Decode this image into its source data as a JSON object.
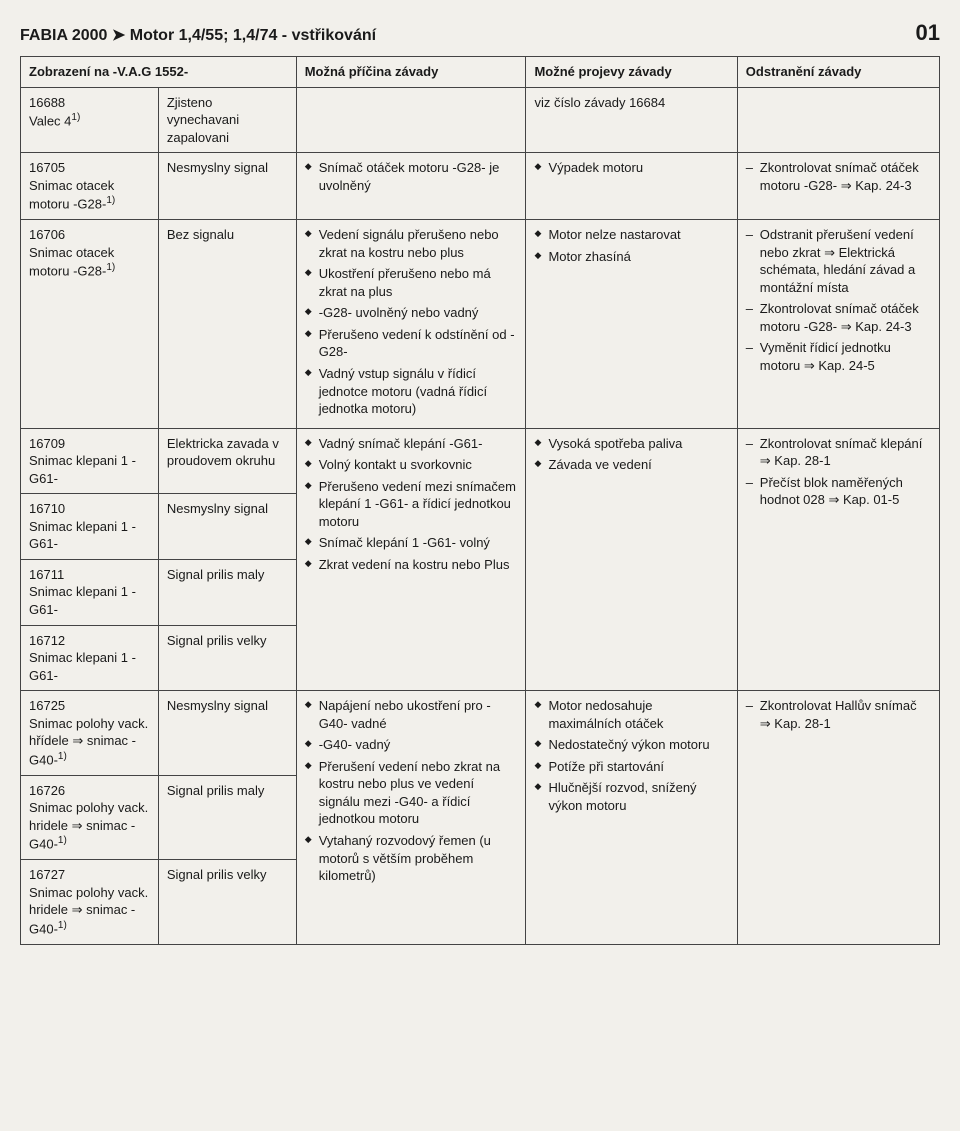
{
  "header": {
    "title": "FABIA 2000 ➤ Motor 1,4/55; 1,4/74 - vstřikování",
    "page": "01"
  },
  "table": {
    "headers": {
      "code": "Zobrazení na -V.A.G 1552-",
      "display": "",
      "cause": "Možná příčina závady",
      "symptom": "Možné projevy závady",
      "fix": "Odstranění závady"
    },
    "rows": [
      {
        "code_html": "16688<br>Valec 4<span class='sup'>1)</span>",
        "display": "Zjisteno vynechavani zapalovani",
        "cause": [],
        "symptom_text": "viz číslo závady 16684",
        "fix": []
      },
      {
        "code_html": "16705<br>Snimac otacek motoru -G28-<span class='sup'>1)</span>",
        "display": "Nesmyslny signal",
        "cause": [
          "Snímač otáček motoru -G28- je uvolněný"
        ],
        "symptom": [
          "Výpadek motoru"
        ],
        "fix": [
          "Zkontrolovat snímač otáček motoru -G28- ⇒ Kap. 24-3"
        ]
      },
      {
        "code_html": "16706<br>Snimac otacek motoru -G28-<span class='sup'>1)</span>",
        "display": "Bez signalu",
        "cause": [
          "Vedení signálu přerušeno nebo zkrat na kostru nebo plus",
          "Ukostření přerušeno nebo má zkrat na plus",
          "-G28- uvolněný nebo vadný",
          "Přerušeno vedení k odstínění od -G28-",
          "Vadný vstup signálu v řídicí jednotce motoru (vadná řídicí jednotka motoru)"
        ],
        "symptom": [
          "Motor nelze nastarovat",
          "Motor zhasíná"
        ],
        "fix": [
          "Odstranit přerušení vedení nebo zkrat ⇒ Elektrická schémata, hledání závad a montážní místa",
          "Zkontrolovat snímač otáček motoru -G28- ⇒ Kap. 24-3",
          "Vyměnit řídicí jednotku motoru ⇒ Kap. 24-5"
        ]
      },
      {
        "codes": [
          {
            "html": "16709<br>Snimac klepani 1 -G61-",
            "display": "Elektricka zavada v proudovem okruhu"
          },
          {
            "html": "16710<br>Snimac klepani 1 -G61-",
            "display": "Nesmyslny signal"
          },
          {
            "html": "16711<br>Snimac klepani 1 -G61-",
            "display": "Signal prilis maly"
          },
          {
            "html": "16712<br>Snimac klepani 1 -G61-",
            "display": "Signal prilis velky"
          }
        ],
        "cause": [
          "Vadný snímač klepání -G61-",
          "Volný kontakt u svorkovnic",
          "Přerušeno vedení mezi snímačem klepání 1 -G61- a řídicí jednotkou motoru",
          "Snímač klepání 1 -G61- volný",
          "Zkrat vedení na kostru nebo Plus"
        ],
        "symptom": [
          "Vysoká spotřeba paliva",
          "Závada ve vedení"
        ],
        "fix": [
          "Zkontrolovat snímač klepání ⇒ Kap. 28-1",
          "Přečíst blok naměřených hodnot 028 ⇒ Kap. 01-5"
        ]
      },
      {
        "codes": [
          {
            "html": "16725<br>Snimac polohy vack. hřídele ⇒ snimac -G40-<span class='sup'>1)</span>",
            "display": "Nesmyslny signal"
          },
          {
            "html": "16726<br>Snimac polohy vack. hridele ⇒ snimac -G40-<span class='sup'>1)</span>",
            "display": "Signal prilis maly"
          },
          {
            "html": "16727<br>Snimac polohy vack. hridele ⇒ snimac -G40-<span class='sup'>1)</span>",
            "display": "Signal prilis velky"
          }
        ],
        "cause": [
          "Napájení nebo ukostření pro -G40- vadné",
          "-G40- vadný",
          "Přerušení vedení nebo zkrat na kostru nebo plus ve vedení signálu mezi -G40- a řídicí jednotkou motoru",
          "Vytahaný rozvodový řemen (u motorů s větším proběhem kilometrů)"
        ],
        "symptom": [
          "Motor nedosahuje maximálních otáček",
          "Nedostatečný výkon motoru",
          "Potíže při startování",
          "Hlučnější rozvod, snížený výkon motoru"
        ],
        "fix": [
          "Zkontrolovat Hallův snímač ⇒ Kap. 28-1"
        ]
      }
    ]
  }
}
